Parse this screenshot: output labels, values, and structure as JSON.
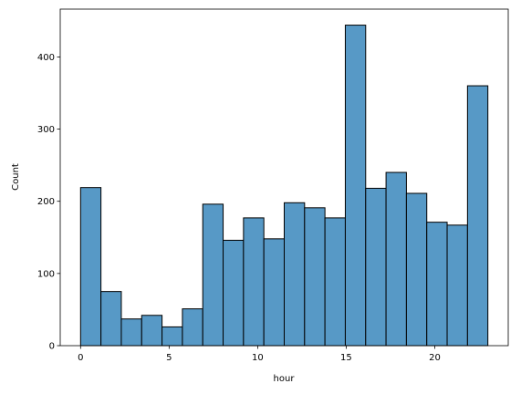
{
  "chart_data": {
    "type": "bar",
    "xlabel": "hour",
    "ylabel": "Count",
    "bar_color": "#5799c6",
    "edge_color": "#000000",
    "bins": [
      {
        "x0": 0.0,
        "x1": 1.15,
        "count": 219
      },
      {
        "x0": 1.15,
        "x1": 2.3,
        "count": 75
      },
      {
        "x0": 2.3,
        "x1": 3.45,
        "count": 37
      },
      {
        "x0": 3.45,
        "x1": 4.6,
        "count": 42
      },
      {
        "x0": 4.6,
        "x1": 5.75,
        "count": 26
      },
      {
        "x0": 5.75,
        "x1": 6.9,
        "count": 51
      },
      {
        "x0": 6.9,
        "x1": 8.05,
        "count": 196
      },
      {
        "x0": 8.05,
        "x1": 9.2,
        "count": 146
      },
      {
        "x0": 9.2,
        "x1": 10.35,
        "count": 177
      },
      {
        "x0": 10.35,
        "x1": 11.5,
        "count": 148
      },
      {
        "x0": 11.5,
        "x1": 12.65,
        "count": 198
      },
      {
        "x0": 12.65,
        "x1": 13.8,
        "count": 191
      },
      {
        "x0": 13.8,
        "x1": 14.95,
        "count": 177
      },
      {
        "x0": 14.95,
        "x1": 16.1,
        "count": 444
      },
      {
        "x0": 16.1,
        "x1": 17.25,
        "count": 218
      },
      {
        "x0": 17.25,
        "x1": 18.4,
        "count": 240
      },
      {
        "x0": 18.4,
        "x1": 19.55,
        "count": 211
      },
      {
        "x0": 19.55,
        "x1": 20.7,
        "count": 171
      },
      {
        "x0": 20.7,
        "x1": 21.85,
        "count": 167
      },
      {
        "x0": 21.85,
        "x1": 23.0,
        "count": 360
      }
    ],
    "xlim": [
      -1.15,
      24.15
    ],
    "ylim": [
      0,
      466.2
    ],
    "xticks": [
      0,
      5,
      10,
      15,
      20
    ],
    "yticks": [
      0,
      100,
      200,
      300,
      400
    ],
    "grid": false,
    "legend": "none"
  }
}
